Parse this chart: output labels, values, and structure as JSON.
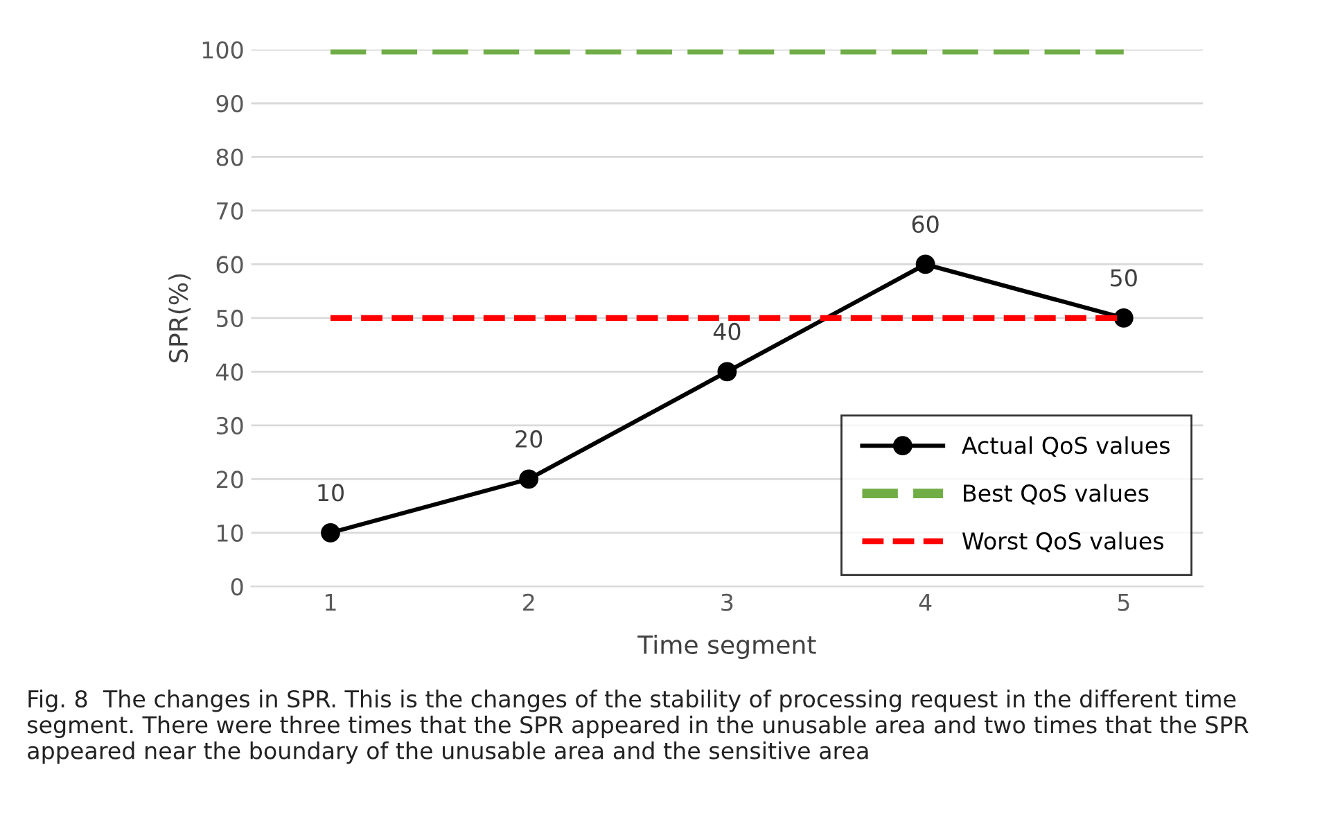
{
  "chart_data": {
    "type": "line",
    "xlabel": "Time segment",
    "ylabel": "SPR(%)",
    "categories": [
      "1",
      "2",
      "3",
      "4",
      "5"
    ],
    "series": [
      {
        "name": "Actual QoS values",
        "color": "#000000",
        "values": [
          10,
          20,
          40,
          60,
          50
        ],
        "marker": "circle",
        "line_style": "solid",
        "value_labels": [
          "10",
          "20",
          "40",
          "60",
          "50"
        ]
      },
      {
        "name": "Best QoS values",
        "color": "#70ad47",
        "values": [
          100,
          100,
          100,
          100,
          100
        ],
        "marker": "none",
        "line_style": "dashed"
      },
      {
        "name": "Worst QoS values",
        "color": "#ff0000",
        "values": [
          50,
          50,
          50,
          50,
          50
        ],
        "marker": "none",
        "line_style": "dashed"
      }
    ],
    "ylim": [
      0,
      100
    ],
    "yticks": [
      0,
      10,
      20,
      30,
      40,
      50,
      60,
      70,
      80,
      90,
      100
    ],
    "grid": "y",
    "legend": "bottom right",
    "annotations": [
      "Fig. 8  The changes in SPR. This is the changes of the stability of processing request in the different time segment. There were three times that the SPR appeared in the unusable area and two times that the SPR appeared near the boundary of the unusable area and the sensitive area"
    ]
  }
}
